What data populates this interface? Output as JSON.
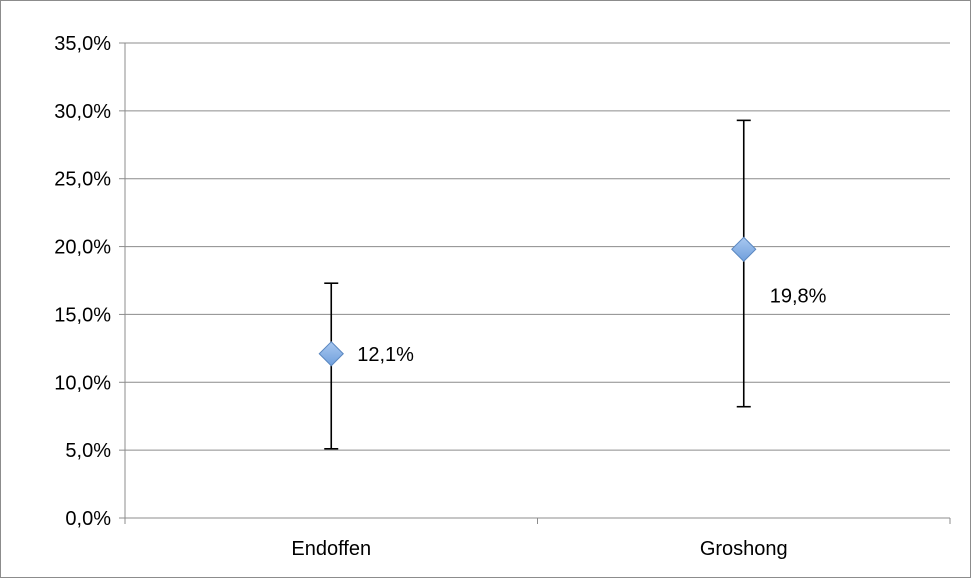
{
  "chart_data": {
    "type": "scatter",
    "categories": [
      "Endoffen",
      "Groshong"
    ],
    "series": [
      {
        "values": [
          12.1,
          19.8
        ],
        "error_low": [
          5.1,
          8.2
        ],
        "error_high": [
          17.3,
          29.3
        ],
        "data_labels": [
          "12,1%",
          "19,8%"
        ],
        "color": "#6f9fdc"
      }
    ],
    "ylim": [
      0,
      35
    ],
    "yticks": [
      0,
      5,
      10,
      15,
      20,
      25,
      30,
      35
    ],
    "ytick_labels": [
      "0,0%",
      "5,0%",
      "10,0%",
      "15,0%",
      "20,0%",
      "25,0%",
      "30,0%",
      "35,0%"
    ],
    "grid": true,
    "legend": "none"
  }
}
